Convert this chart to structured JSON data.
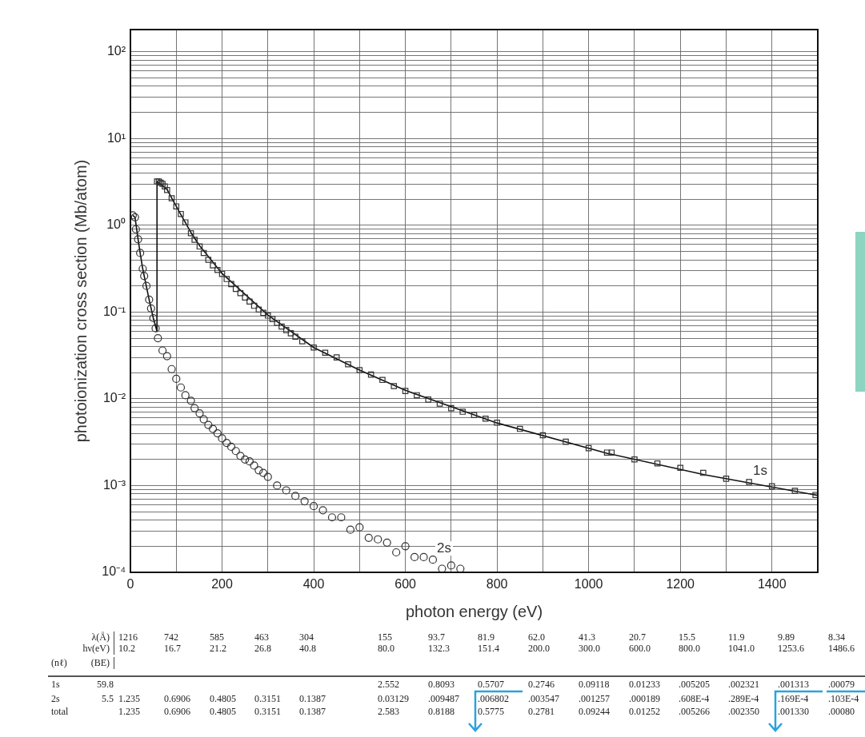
{
  "chart_data": {
    "type": "scatter",
    "xlabel": "photon energy (eV)",
    "ylabel": "photoionization cross section (Mb/atom)",
    "log": "y",
    "grid": true,
    "legend": false,
    "xlim": [
      0,
      1500
    ],
    "xticks": [
      0,
      {
        "value": 100,
        "label": null
      },
      200,
      {
        "value": 300,
        "label": null
      },
      400,
      {
        "value": 500,
        "label": null
      },
      600,
      {
        "value": 700,
        "label": null
      },
      800,
      {
        "value": 900,
        "label": null
      },
      1000,
      {
        "value": 1100,
        "label": null
      },
      1200,
      {
        "value": 1300,
        "label": null
      },
      1400
    ],
    "ylim": [
      0.0001,
      180
    ],
    "yticks": [
      {
        "value": 0.0001,
        "label": "10⁻⁴"
      },
      {
        "value": 0.0002,
        "label": null
      },
      {
        "value": 0.0003,
        "label": null
      },
      {
        "value": 0.0004,
        "label": null
      },
      {
        "value": 0.0005,
        "label": null
      },
      {
        "value": 0.0006,
        "label": null
      },
      {
        "value": 0.0007,
        "label": null
      },
      {
        "value": 0.0008,
        "label": null
      },
      {
        "value": 0.0009,
        "label": null
      },
      {
        "value": 0.001,
        "label": "10⁻³"
      },
      {
        "value": 0.002,
        "label": null
      },
      {
        "value": 0.003,
        "label": null
      },
      {
        "value": 0.004,
        "label": null
      },
      {
        "value": 0.005,
        "label": null
      },
      {
        "value": 0.006,
        "label": null
      },
      {
        "value": 0.007,
        "label": null
      },
      {
        "value": 0.008,
        "label": null
      },
      {
        "value": 0.009,
        "label": null
      },
      {
        "value": 0.01,
        "label": "10⁻²"
      },
      {
        "value": 0.02,
        "label": null
      },
      {
        "value": 0.03,
        "label": null
      },
      {
        "value": 0.04,
        "label": null
      },
      {
        "value": 0.05,
        "label": null
      },
      {
        "value": 0.06,
        "label": null
      },
      {
        "value": 0.07,
        "label": null
      },
      {
        "value": 0.08,
        "label": null
      },
      {
        "value": 0.09,
        "label": null
      },
      {
        "value": 0.1,
        "label": "10⁻¹"
      },
      {
        "value": 0.2,
        "label": null
      },
      {
        "value": 0.3,
        "label": null
      },
      {
        "value": 0.4,
        "label": null
      },
      {
        "value": 0.5,
        "label": null
      },
      {
        "value": 0.6,
        "label": null
      },
      {
        "value": 0.7,
        "label": null
      },
      {
        "value": 0.8,
        "label": null
      },
      {
        "value": 0.9,
        "label": null
      },
      {
        "value": 1,
        "label": "10⁰"
      },
      {
        "value": 2,
        "label": null
      },
      {
        "value": 3,
        "label": null
      },
      {
        "value": 4,
        "label": null
      },
      {
        "value": 5,
        "label": null
      },
      {
        "value": 6,
        "label": null
      },
      {
        "value": 7,
        "label": null
      },
      {
        "value": 8,
        "label": null
      },
      {
        "value": 9,
        "label": null
      },
      {
        "value": 10,
        "label": "10¹"
      },
      {
        "value": 20,
        "label": null
      },
      {
        "value": 30,
        "label": null
      },
      {
        "value": 40,
        "label": null
      },
      {
        "value": 50,
        "label": null
      },
      {
        "value": 60,
        "label": null
      },
      {
        "value": 70,
        "label": null
      },
      {
        "value": 80,
        "label": null
      },
      {
        "value": 90,
        "label": null
      },
      {
        "value": 100,
        "label": "10²"
      }
    ],
    "series": [
      {
        "name": "1s",
        "type": "scatter",
        "marker": "square",
        "color": "#333333",
        "x": [
          58,
          62,
          66,
          70,
          75,
          80,
          90,
          100,
          110,
          120,
          132,
          140,
          151,
          160,
          170,
          180,
          190,
          200,
          210,
          220,
          230,
          240,
          250,
          260,
          270,
          280,
          290,
          300,
          310,
          320,
          330,
          340,
          350,
          360,
          375,
          400,
          425,
          450,
          475,
          500,
          525,
          550,
          575,
          600,
          625,
          650,
          675,
          700,
          725,
          750,
          775,
          800,
          850,
          900,
          950,
          1000,
          1040,
          1050,
          1100,
          1150,
          1200,
          1250,
          1300,
          1350,
          1400,
          1450,
          1495
        ],
        "values": [
          3.2,
          3.2,
          3.1,
          3.0,
          2.8,
          2.55,
          2.05,
          1.65,
          1.35,
          1.08,
          0.81,
          0.68,
          0.57,
          0.48,
          0.4,
          0.345,
          0.305,
          0.275,
          0.24,
          0.21,
          0.185,
          0.165,
          0.147,
          0.132,
          0.118,
          0.107,
          0.098,
          0.091,
          0.083,
          0.075,
          0.068,
          0.062,
          0.057,
          0.052,
          0.046,
          0.039,
          0.034,
          0.03,
          0.025,
          0.0214,
          0.019,
          0.0165,
          0.014,
          0.0123,
          0.011,
          0.0098,
          0.0088,
          0.0078,
          0.0071,
          0.0065,
          0.0059,
          0.0053,
          0.0045,
          0.0038,
          0.0032,
          0.0027,
          0.0024,
          0.0024,
          0.002,
          0.0018,
          0.0016,
          0.0014,
          0.0012,
          0.0011,
          0.00098,
          0.00087,
          0.00078
        ]
      },
      {
        "name": "2s",
        "type": "scatter",
        "marker": "circle",
        "color": "#333333",
        "x": [
          5,
          10,
          12,
          16.7,
          21.2,
          26.8,
          30,
          35,
          40.8,
          45,
          50,
          55,
          60,
          70,
          80,
          90,
          100,
          110,
          120,
          132,
          140,
          151,
          160,
          170,
          180,
          190,
          200,
          210,
          220,
          230,
          240,
          250,
          260,
          270,
          280,
          290,
          300,
          320,
          340,
          360,
          380,
          400,
          420,
          440,
          460,
          480,
          500,
          520,
          540,
          560,
          580,
          600,
          620,
          640,
          660,
          680,
          700,
          720
        ],
        "values": [
          1.3,
          1.235,
          0.9,
          0.69,
          0.48,
          0.315,
          0.26,
          0.2,
          0.139,
          0.11,
          0.085,
          0.065,
          0.05,
          0.036,
          0.031,
          0.022,
          0.017,
          0.0135,
          0.011,
          0.0095,
          0.0078,
          0.0068,
          0.0058,
          0.005,
          0.0045,
          0.004,
          0.0035,
          0.0031,
          0.0028,
          0.0025,
          0.0022,
          0.002,
          0.0019,
          0.0017,
          0.0015,
          0.0014,
          0.00126,
          0.001,
          0.00088,
          0.00076,
          0.00066,
          0.00058,
          0.00052,
          0.00043,
          0.00043,
          0.00031,
          0.00033,
          0.00025,
          0.00024,
          0.00022,
          0.00017,
          0.0002,
          0.00015,
          0.00015,
          0.00014,
          0.00011,
          0.00012,
          0.00011
        ]
      },
      {
        "type": "line",
        "marker": "none",
        "line_style": "solid",
        "color": "#111111",
        "x": [
          5,
          10,
          16.7,
          21.2,
          26.8,
          40.8,
          50,
          58,
          58,
          80,
          100,
          132.3,
          151.4,
          200,
          300,
          400,
          500,
          600,
          800,
          1041,
          1253.6,
          1500
        ],
        "values": [
          1.3,
          1.235,
          0.69,
          0.48,
          0.315,
          0.139,
          0.085,
          0.06,
          3.2,
          2.583,
          1.65,
          0.8188,
          0.5775,
          0.2781,
          0.09244,
          0.039,
          0.0214,
          0.01252,
          0.005266,
          0.00235,
          0.00133,
          0.00077
        ]
      }
    ],
    "annotations": [
      "\tλ(Å)\t1216\t742\t585\t463\t304\t155\t93.7\t81.9\t62.0\t41.3\t20.7\t15.5\t11.9\t9.89\t8.34",
      "\thν(eV)\t10.2\t16.7\t21.2\t26.8\t40.8\t80.0\t132.3\t151.4\t200.0\t300.0\t600.0\t800.0\t1041.0\t1253.6\t1486.6",
      "(nℓ)\t(BE)",
      "1s\t59.8\t\t\t\t\t\t2.552\t0.8093\t0.5707\t0.2746\t0.09118\t0.01233\t.005205\t.002321\t.001313\t.00079",
      "2s\t5.5\t1.235\t0.6906\t0.4805\t0.3151\t0.1387\t0.03129\t.009487\t.006802\t.003547\t.001257\t.000189\t.608E-4\t.289E-4\t.169E-4\t.103E-4",
      "total\t\t1.235\t0.6906\t0.4805\t0.3151\t0.1387\t2.583\t0.8188\t0.5775\t0.2781\t0.09244\t0.01252\t.005266\t.002350\t.001330\t.00080"
    ]
  }
}
